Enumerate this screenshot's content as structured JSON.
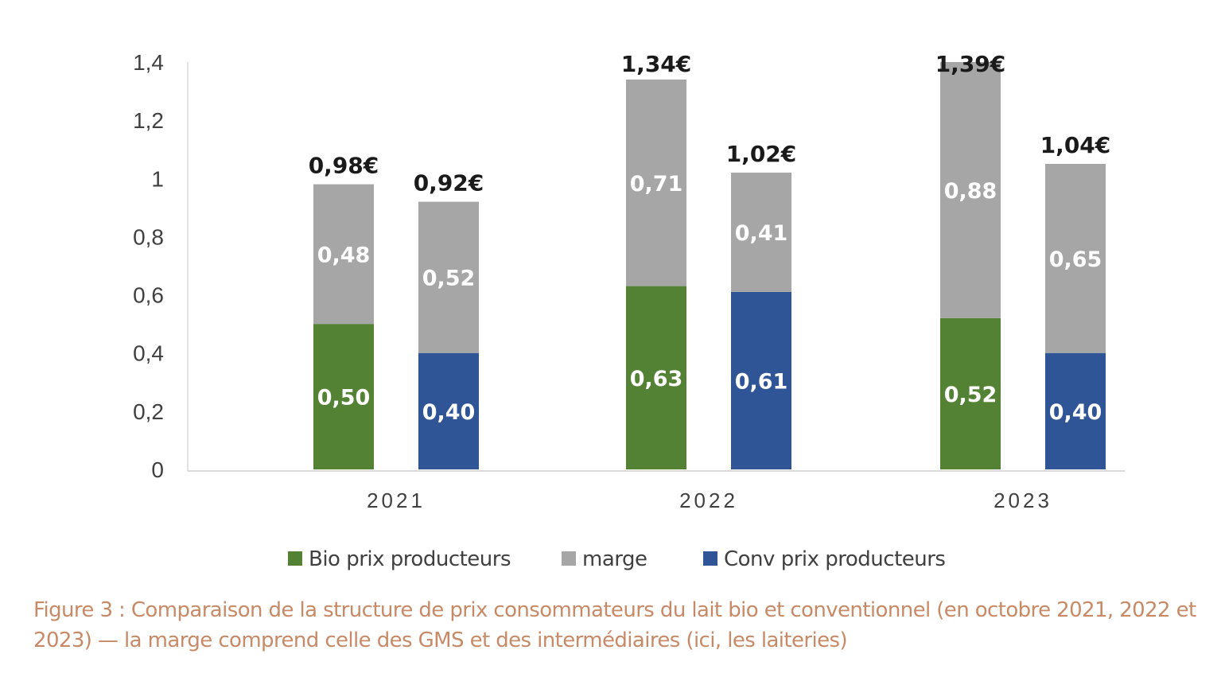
{
  "chart_data": {
    "type": "bar",
    "stacked": true,
    "title": "",
    "xlabel": "",
    "ylabel": "",
    "ylim": [
      0,
      1.4
    ],
    "yticks": [
      "0",
      "0,2",
      "0,4",
      "0,6",
      "0,8",
      "1",
      "1,2",
      "1,4"
    ],
    "grid": false,
    "legend_position": "bottom",
    "categories": [
      "2021",
      "2022",
      "2023"
    ],
    "groups": [
      {
        "category": "2021",
        "bars": [
          {
            "type": "bio",
            "producer": 0.5,
            "producer_label": "0,50",
            "margin": 0.48,
            "margin_label": "0,48",
            "total_label": "0,98€"
          },
          {
            "type": "conv",
            "producer": 0.4,
            "producer_label": "0,40",
            "margin": 0.52,
            "margin_label": "0,52",
            "total_label": "0,92€"
          }
        ]
      },
      {
        "category": "2022",
        "bars": [
          {
            "type": "bio",
            "producer": 0.63,
            "producer_label": "0,63",
            "margin": 0.71,
            "margin_label": "0,71",
            "total_label": "1,34€"
          },
          {
            "type": "conv",
            "producer": 0.61,
            "producer_label": "0,61",
            "margin": 0.41,
            "margin_label": "0,41",
            "total_label": "1,02€"
          }
        ]
      },
      {
        "category": "2023",
        "bars": [
          {
            "type": "bio",
            "producer": 0.52,
            "producer_label": "0,52",
            "margin": 0.88,
            "margin_label": "0,88",
            "total_label": "1,39€"
          },
          {
            "type": "conv",
            "producer": 0.4,
            "producer_label": "0,40",
            "margin": 0.65,
            "margin_label": "0,65",
            "total_label": "1,04€"
          }
        ]
      }
    ],
    "legend": [
      {
        "key": "bio",
        "label": "Bio prix producteurs",
        "color": "#548235"
      },
      {
        "key": "marge",
        "label": "marge",
        "color": "#a6a6a6"
      },
      {
        "key": "conv",
        "label": "Conv prix producteurs",
        "color": "#2f5597"
      }
    ],
    "colors": {
      "bio": "#548235",
      "marge": "#a6a6a6",
      "conv": "#2f5597",
      "axis": "#d9d9d9",
      "caption": "#c88a66"
    }
  },
  "caption": {
    "text": "Figure 3 : Comparaison de la structure de prix consommateurs du lait bio et conventionnel (en octobre 2021, 2022 et 2023) — la marge comprend celle des GMS et des intermédiaires (ici, les laiteries)"
  }
}
